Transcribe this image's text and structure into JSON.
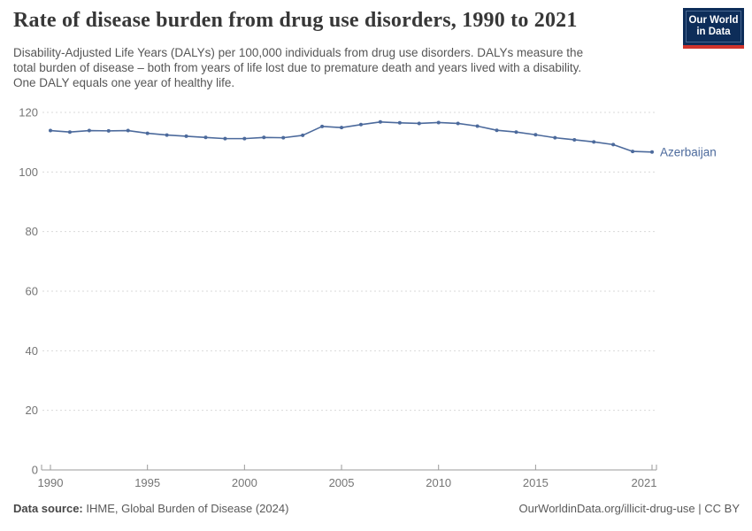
{
  "header": {
    "title": "Rate of disease burden from drug use disorders, 1990 to 2021",
    "subtitle": "Disability-Adjusted Life Years (DALYs) per 100,000 individuals from drug use disorders. DALYs measure the\ntotal burden of disease – both from years of life lost due to premature death and years lived with a disability.\nOne DALY equals one year of healthy life.",
    "logo": {
      "line1": "Our World",
      "line2": "in Data",
      "bg_color": "#0d2d59",
      "accent_color": "#d0342c"
    }
  },
  "chart_data": {
    "type": "line",
    "title": "Rate of disease burden from drug use disorders, 1990 to 2021",
    "ylabel": "DALYs per 100,000 individuals",
    "xlim": [
      1990,
      2021
    ],
    "ylim": [
      0,
      120
    ],
    "x_ticks": [
      1990,
      1995,
      2000,
      2005,
      2010,
      2015,
      2021
    ],
    "y_ticks": [
      0,
      20,
      40,
      60,
      80,
      100,
      120
    ],
    "grid": "horizontal-dashed",
    "legend_position": "end-of-line-label",
    "x": [
      1990,
      1991,
      1992,
      1993,
      1994,
      1995,
      1996,
      1997,
      1998,
      1999,
      2000,
      2001,
      2002,
      2003,
      2004,
      2005,
      2006,
      2007,
      2008,
      2009,
      2010,
      2011,
      2012,
      2013,
      2014,
      2015,
      2016,
      2017,
      2018,
      2019,
      2020,
      2021
    ],
    "series": [
      {
        "name": "Azerbaijan",
        "color": "#4c6a9c",
        "values": [
          113.9,
          113.4,
          113.9,
          113.8,
          113.9,
          113.0,
          112.4,
          112.0,
          111.6,
          111.2,
          111.2,
          111.6,
          111.5,
          112.3,
          115.3,
          114.9,
          115.9,
          116.8,
          116.5,
          116.3,
          116.6,
          116.3,
          115.4,
          114.0,
          113.4,
          112.5,
          111.5,
          110.8,
          110.1,
          109.2,
          106.9,
          106.7
        ]
      }
    ],
    "axis_color": "#9a9a9a",
    "grid_color": "#dadada",
    "tick_label_color": "#757575"
  },
  "footer": {
    "source_label": "Data source:",
    "source_value": " IHME, Global Burden of Disease (2024)",
    "credit": "OurWorldinData.org/illicit-drug-use | CC BY"
  }
}
